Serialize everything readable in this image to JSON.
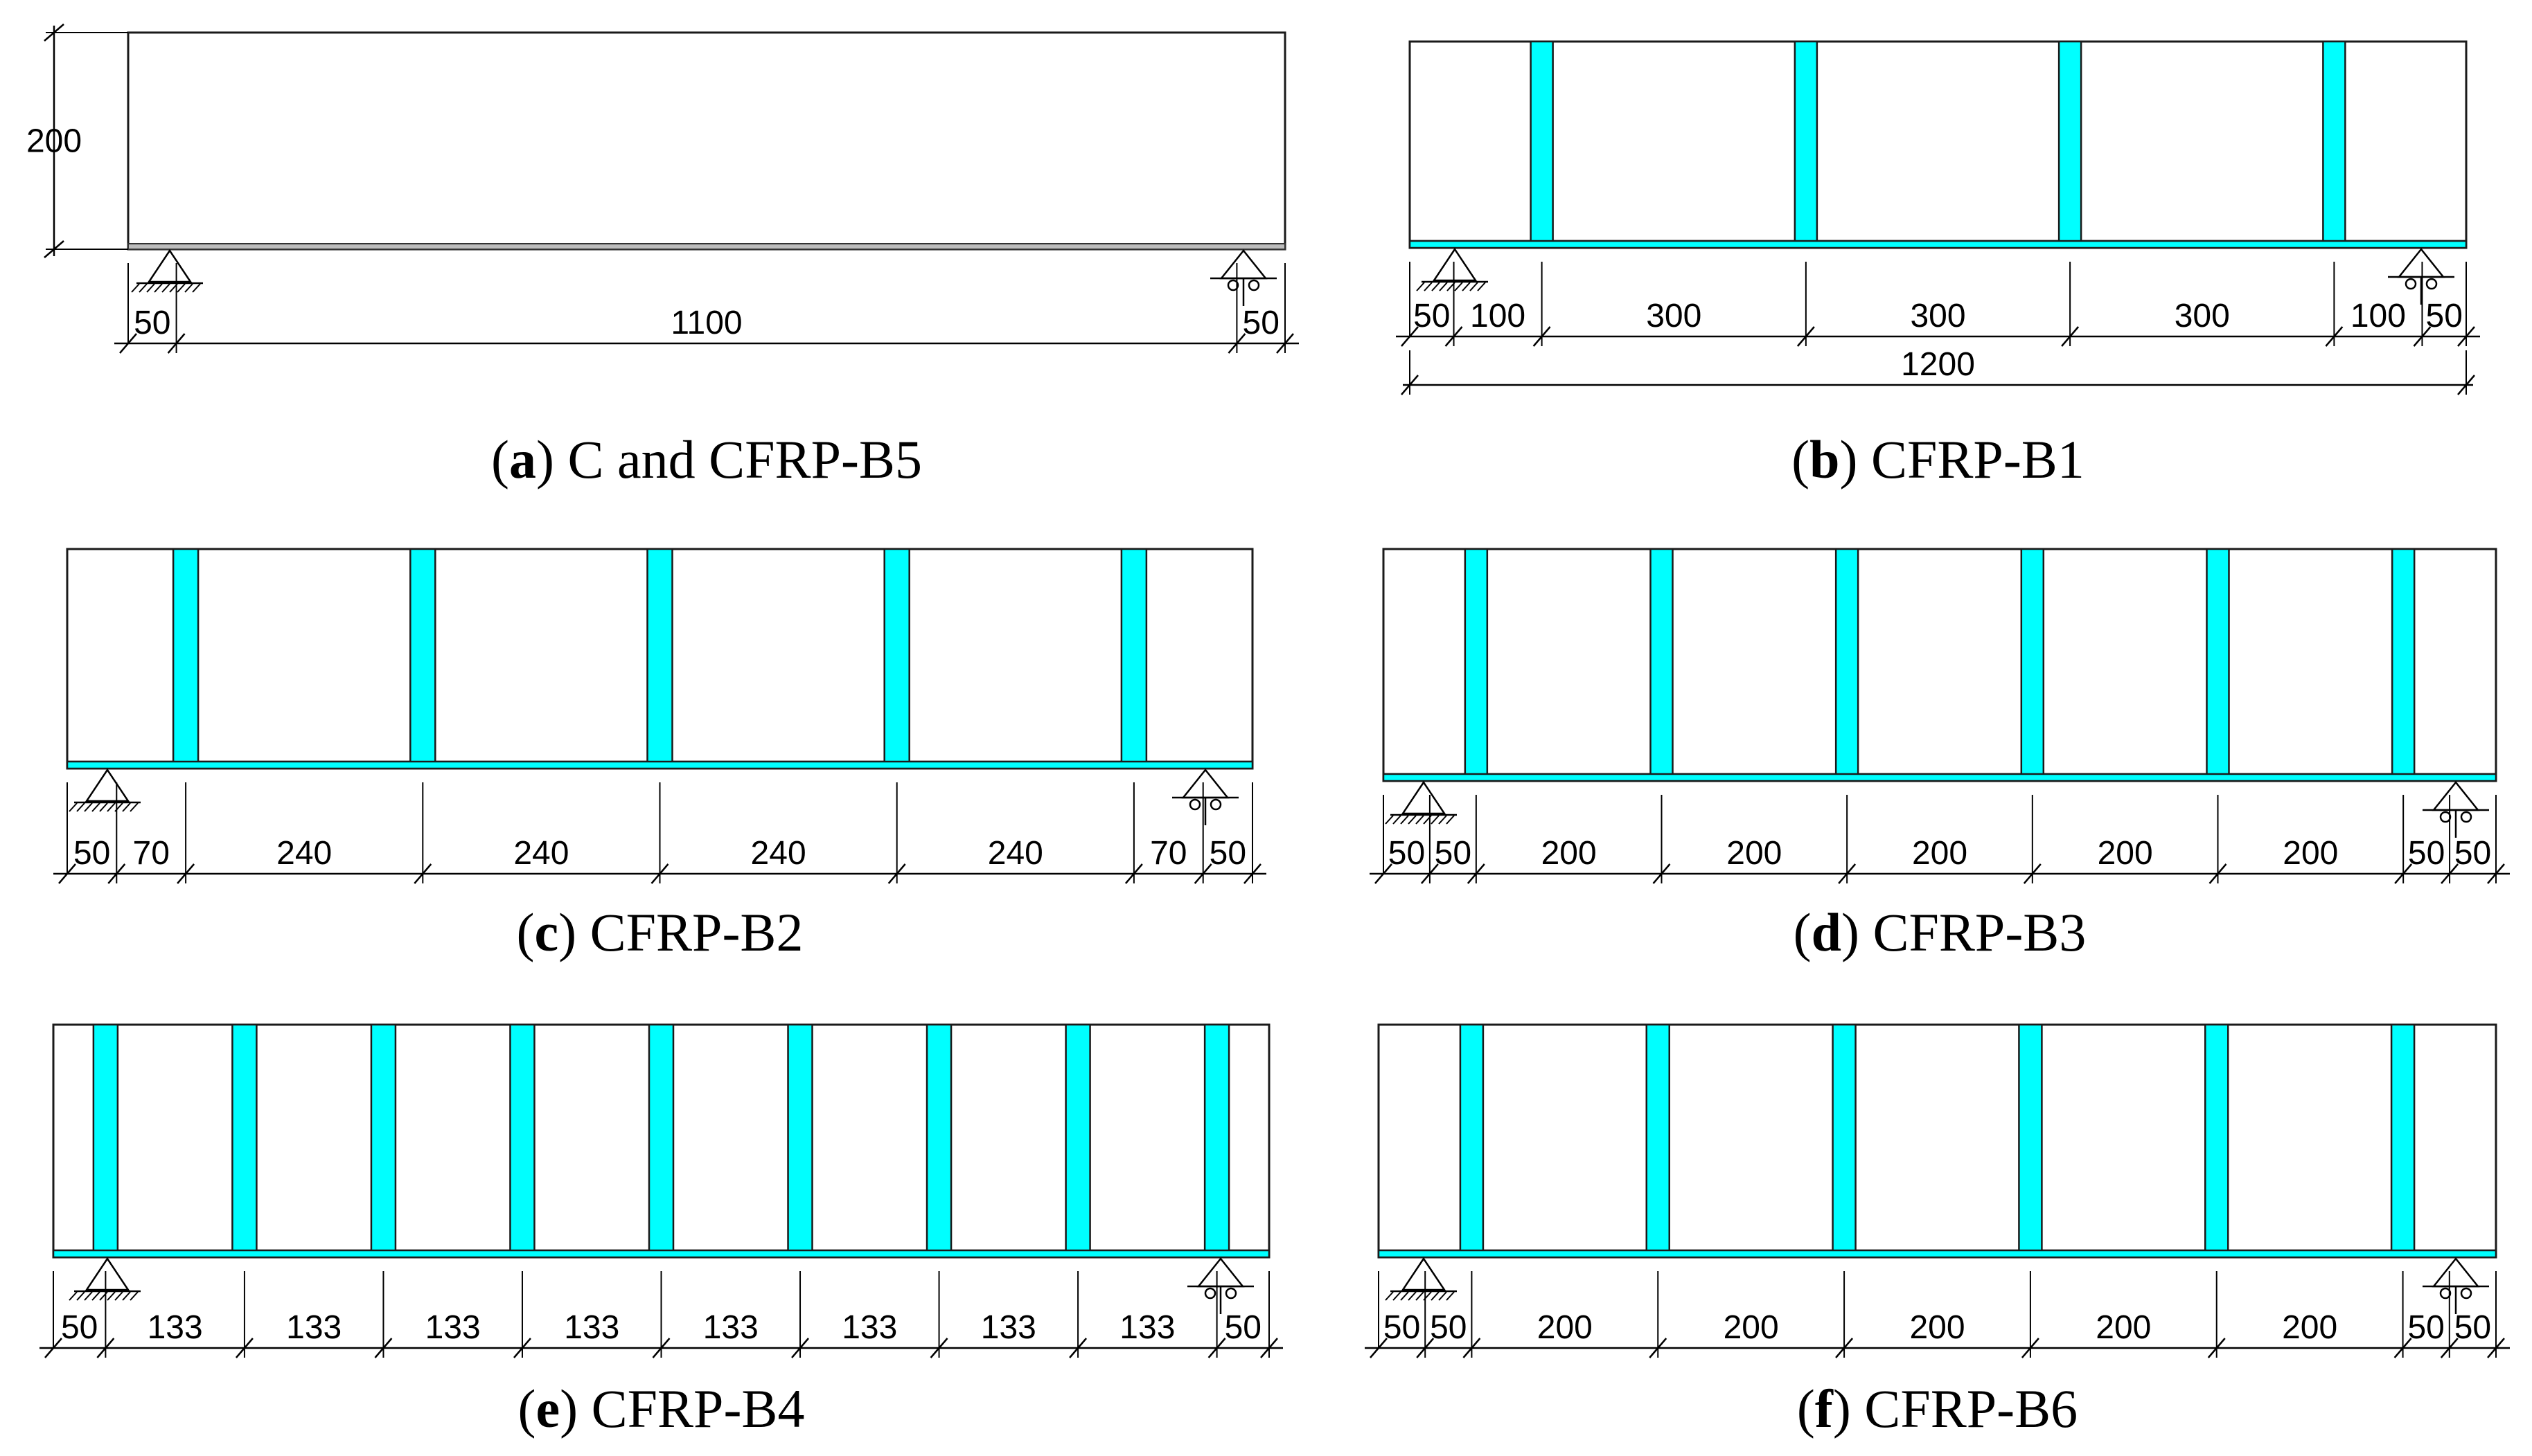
{
  "colors": {
    "cfrp": "#00ffff",
    "outline": "#1a1a1a",
    "background": "#ffffff"
  },
  "panels": [
    {
      "id": "a",
      "caption_label": "a",
      "caption_text": "C and CFRP-B5",
      "height_label": "200",
      "strips": 0,
      "segments": [
        "50",
        "1100",
        "50"
      ],
      "total_label": ""
    },
    {
      "id": "b",
      "caption_label": "b",
      "caption_text": "CFRP-B1",
      "height_label": "",
      "strips": 4,
      "segments": [
        "50",
        "100",
        "300",
        "300",
        "300",
        "100",
        "50"
      ],
      "total_label": "1200"
    },
    {
      "id": "c",
      "caption_label": "c",
      "caption_text": "CFRP-B2",
      "height_label": "",
      "strips": 5,
      "segments": [
        "50",
        "70",
        "240",
        "240",
        "240",
        "240",
        "70",
        "50"
      ],
      "total_label": ""
    },
    {
      "id": "d",
      "caption_label": "d",
      "caption_text": "CFRP-B3",
      "height_label": "",
      "strips": 6,
      "segments": [
        "50",
        "50",
        "200",
        "200",
        "200",
        "200",
        "200",
        "50",
        "50"
      ],
      "total_label": ""
    },
    {
      "id": "e",
      "caption_label": "e",
      "caption_text": "CFRP-B4",
      "height_label": "",
      "strips": 9,
      "segments": [
        "50",
        "133",
        "133",
        "133",
        "133",
        "133",
        "133",
        "133",
        "133",
        "50"
      ],
      "total_label": ""
    },
    {
      "id": "f",
      "caption_label": "f",
      "caption_text": "CFRP-B6",
      "height_label": "",
      "strips": 6,
      "segments": [
        "50",
        "50",
        "200",
        "200",
        "200",
        "200",
        "200",
        "50",
        "50"
      ],
      "total_label": ""
    }
  ]
}
